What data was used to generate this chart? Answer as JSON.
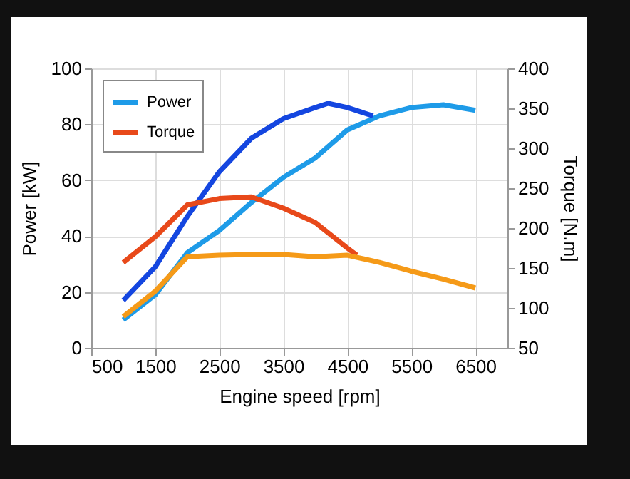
{
  "chart_data": {
    "type": "line",
    "xlabel": "Engine speed  [rpm]",
    "ylabel": "Power  [kW]",
    "y2label": "Torque  [N.m]",
    "xlim": [
      500,
      7000
    ],
    "xticks": [
      500,
      1500,
      2500,
      3500,
      4500,
      5500,
      6500
    ],
    "ylim": [
      0,
      100
    ],
    "yticks": [
      0,
      20,
      40,
      60,
      80,
      100
    ],
    "y2lim": [
      50,
      400
    ],
    "y2ticks": [
      50,
      100,
      150,
      200,
      250,
      300,
      350,
      400
    ],
    "grid": true,
    "legend": "top left",
    "line_style": "solid",
    "marker": "none",
    "series": [
      {
        "name": "Power",
        "color": "#1e9be8",
        "x": [
          1000,
          1500,
          2000,
          2500,
          3000,
          3500,
          4000,
          4500,
          5000,
          5500,
          6000,
          6500
        ],
        "values": [
          10,
          19,
          34,
          42,
          52,
          61,
          68,
          78,
          83,
          86,
          87,
          85
        ]
      },
      {
        "name": "Torque",
        "color": "#e8491a",
        "axis": "y2",
        "x": [
          1000,
          1500,
          2000,
          2500,
          3000,
          3500,
          4000,
          4500,
          4650
        ],
        "values": [
          157,
          189,
          229,
          237,
          239,
          225,
          207,
          175,
          166
        ]
      },
      {
        "color": "#1446e0",
        "x": [
          1000,
          1500,
          2000,
          2500,
          3000,
          3500,
          4000,
          4200,
          4500,
          4900
        ],
        "values": [
          17,
          29,
          47,
          63,
          75,
          82,
          86,
          87.5,
          86,
          83
        ]
      },
      {
        "color": "#f59a18",
        "axis": "y2",
        "x": [
          1000,
          1500,
          2000,
          2500,
          3000,
          3500,
          4000,
          4500,
          5000,
          5500,
          6000,
          6500
        ],
        "values": [
          89,
          121,
          164,
          166,
          167,
          167,
          164,
          166,
          157,
          146,
          136,
          125
        ]
      }
    ]
  }
}
